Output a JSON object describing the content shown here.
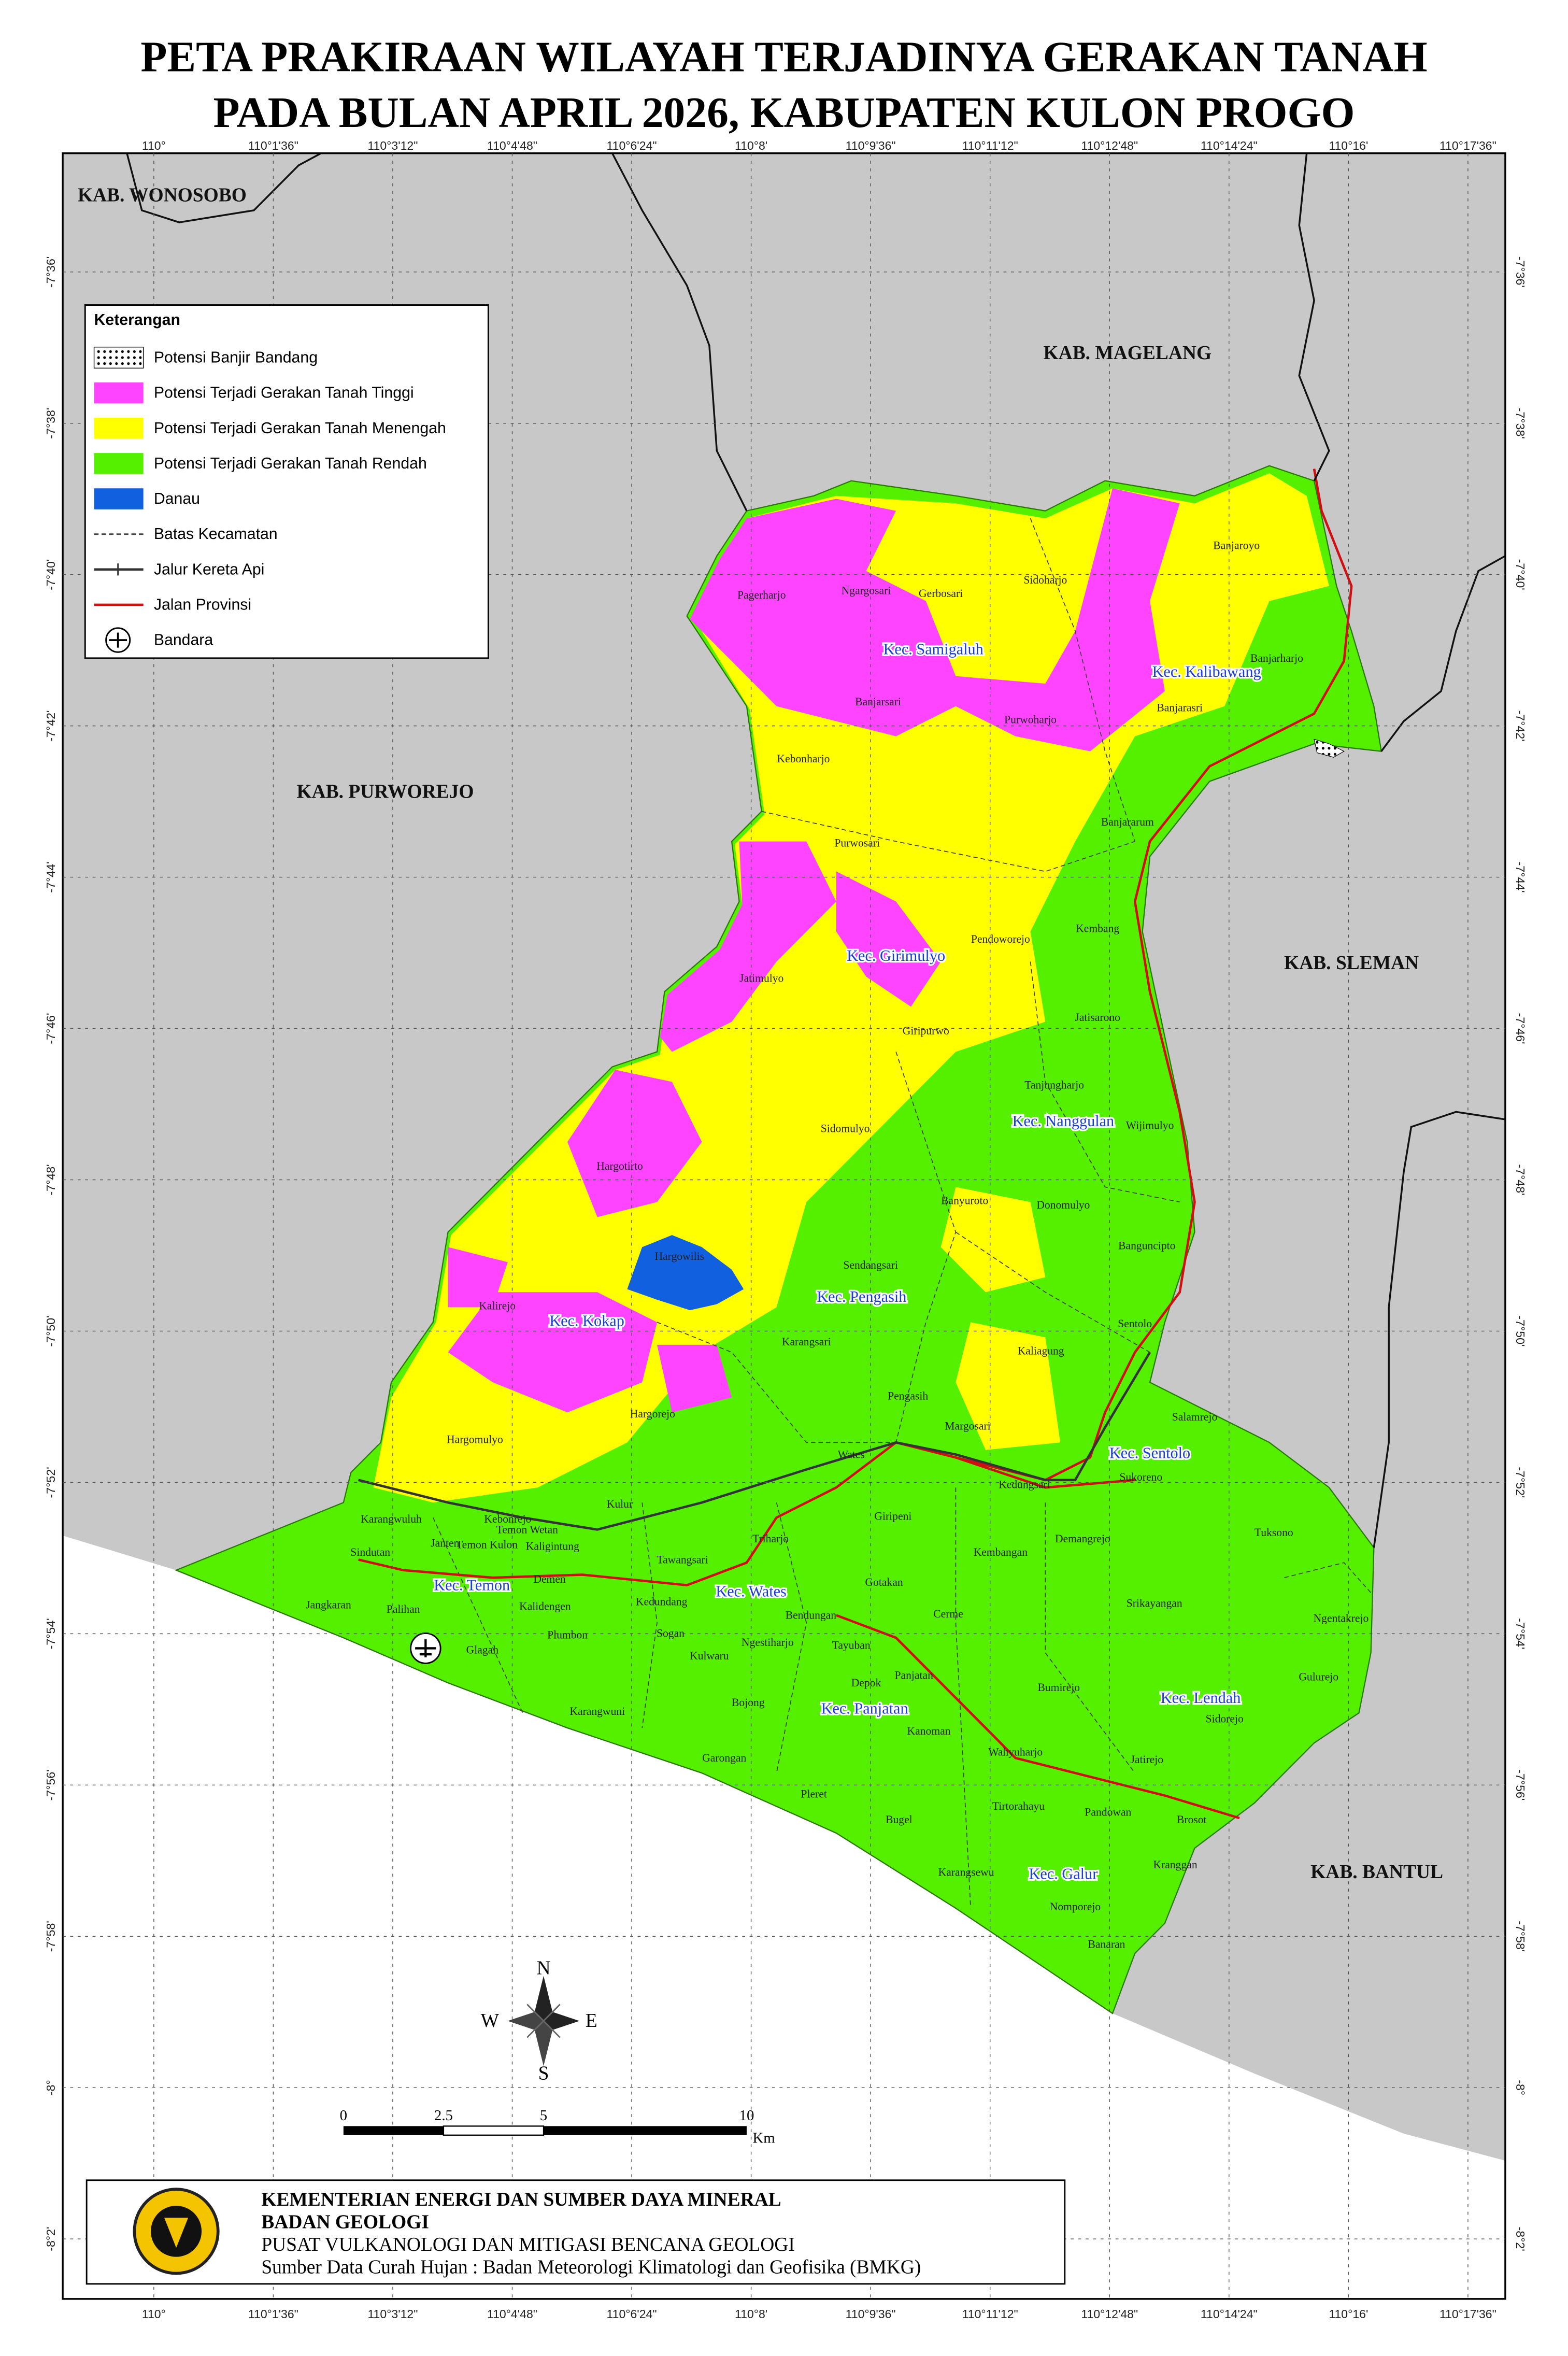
{
  "title": [
    "PETA PRAKIRAAN WILAYAH TERJADINYA GERAKAN TANAH",
    "PADA BULAN APRIL 2026, KABUPATEN KULON PROGO"
  ],
  "graticule": {
    "longitude": [
      "110°",
      "110°1'36\"",
      "110°3'12\"",
      "110°4'48\"",
      "110°6'24\"",
      "110°8'",
      "110°9'36\"",
      "110°11'12\"",
      "110°12'48\"",
      "110°14'24\"",
      "110°16'",
      "110°17'36\""
    ],
    "latitude": [
      "-7°36'",
      "-7°38'",
      "-7°40'",
      "-7°42'",
      "-7°44'",
      "-7°46'",
      "-7°48'",
      "-7°50'",
      "-7°52'",
      "-7°54'",
      "-7°56'",
      "-7°58'",
      "-8°",
      "-8°2'"
    ]
  },
  "legend": {
    "title": "Keterangan",
    "items": [
      "Potensi Banjir Bandang",
      "Potensi Terjadi Gerakan Tanah Tinggi",
      "Potensi Terjadi Gerakan Tanah Menengah",
      "Potensi Terjadi Gerakan Tanah Rendah",
      "Danau",
      "Batas Kecamatan",
      "Jalur Kereta Api",
      "Jalan Provinsi",
      "Bandara"
    ]
  },
  "regencies": [
    "KAB. WONOSOBO",
    "KAB. MAGELANG",
    "KAB. PURWOREJO",
    "KAB. SLEMAN",
    "KAB. BANTUL"
  ],
  "districts": [
    "Kec. Samigaluh",
    "Kec. Kalibawang",
    "Kec. Girimulyo",
    "Kec. Nanggulan",
    "Kec. Pengasih",
    "Kec. Kokap",
    "Kec. Sentolo",
    "Kec. Temon",
    "Kec. Wates",
    "Kec. Panjatan",
    "Kec. Lendah",
    "Kec. Galur"
  ],
  "villages": [
    "Ngargosari",
    "Gerbosari",
    "Pagerharjo",
    "Sidoharjo",
    "Banjaroyo",
    "Banjarharjo",
    "Banjarasri",
    "Banjarsari",
    "Purwoharjo",
    "Kebonharjo",
    "Banjararum",
    "Purwosari",
    "Kembang",
    "Pendoworejo",
    "Jatimulyo",
    "Jatisarono",
    "Giripurwo",
    "Tanjungharjo",
    "Wijimulyo",
    "Sidomulyo",
    "Hargotirto",
    "Banyuroto",
    "Donomulyo",
    "Banguncipto",
    "Hargowilis",
    "Sendangsari",
    "Kalirejo",
    "Sentolo",
    "Karangsari",
    "Kaliagung",
    "Pengasih",
    "Hargorejo",
    "Salamrejo",
    "Margosari",
    "Hargomulyo",
    "Wates",
    "Kedungsari",
    "Sukoreno",
    "Kulur",
    "Karangwuluh",
    "Kebonrejo",
    "Temon Wetan",
    "Temon Kulon",
    "Janten",
    "Kaligintung",
    "Sindutan",
    "Giripeni",
    "Triharjo",
    "Tawangsari",
    "Demangrejo",
    "Kembangan",
    "Tuksono",
    "Demen",
    "Gotakan",
    "Kedundang",
    "Kalidengen",
    "Jangkaran",
    "Palihan",
    "Srikayangan",
    "Cerme",
    "Bendungan",
    "Ngentakrejo",
    "Plumbon",
    "Sogan",
    "Ngestiharjo",
    "Tayuban",
    "Glagah",
    "Kulwaru",
    "Panjatan",
    "Gulurejo",
    "Depok",
    "Bumirejo",
    "Bojong",
    "Karangwuni",
    "Sidorejo",
    "Kanoman",
    "Wahyuharjo",
    "Garongan",
    "Jatirejo",
    "Pleret",
    "Tirtorahayu",
    "Pandowan",
    "Brosot",
    "Bugel",
    "Kranggan",
    "Karangsewu",
    "Nomporejo",
    "Banaran"
  ],
  "scale": {
    "labels": [
      "0",
      "2.5",
      "5",
      "10"
    ],
    "unit": "Km"
  },
  "compass": {
    "north": "N",
    "east": "E",
    "south": "S",
    "west": "W"
  },
  "footer": {
    "ministry": "KEMENTERIAN ENERGI DAN SUMBER DAYA MINERAL",
    "agency": "BADAN GEOLOGI",
    "center": "PUSAT VULKANOLOGI DAN MITIGASI BENCANA GEOLOGI",
    "source": "Sumber Data Curah Hujan : Badan Meteorologi Klimatologi dan Geofisika (BMKG)"
  }
}
